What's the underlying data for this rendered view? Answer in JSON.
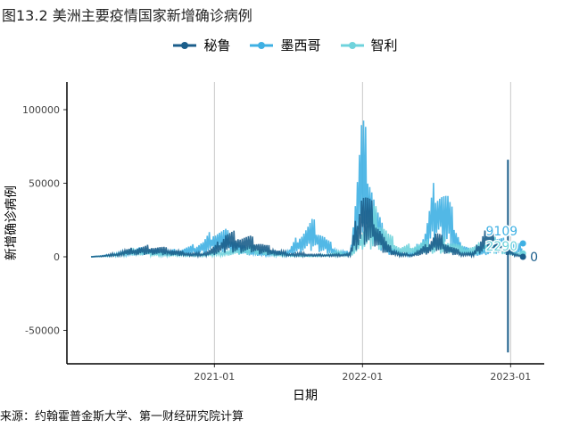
{
  "title": "图13.2 美洲主要疫情国家新增确诊病例",
  "caption": "来源：约翰霍普金斯大学、第一财经研究院计算",
  "chart_data": {
    "type": "line",
    "title": "图13.2 美洲主要疫情国家新增确诊病例",
    "xlabel": "日期",
    "ylabel": "新增确诊病例",
    "x_start": "2020-03",
    "x_end": "2023-02",
    "x_unit": "month",
    "xticks": [
      "2021-01",
      "2022-01",
      "2023-01"
    ],
    "yticks": [
      -50000,
      0,
      50000,
      100000
    ],
    "ylim": [
      -70000,
      115000
    ],
    "grid": "vertical-major",
    "legend_position": "top",
    "series": [
      {
        "name": "秘鲁",
        "color": "#1b5e8b",
        "end_label": "0",
        "values": [
          0,
          1000,
          3000,
          6000,
          8000,
          9000,
          7000,
          5000,
          3000,
          3000,
          8000,
          20000,
          18000,
          15000,
          10000,
          6000,
          3000,
          3000,
          2000,
          2000,
          2000,
          3000,
          58000,
          35000,
          10000,
          3000,
          2000,
          8000,
          20000,
          10000,
          4000,
          3000,
          25000,
          15000,
          5000,
          0
        ],
        "outliers": [
          {
            "month_index": 34,
            "value": 66000
          },
          {
            "month_index": 34,
            "value": -65000
          }
        ]
      },
      {
        "name": "墨西哥",
        "color": "#3fb0e3",
        "end_label": "9109",
        "values": [
          0,
          1000,
          3000,
          5000,
          7000,
          6000,
          5000,
          6000,
          8000,
          12000,
          22000,
          20000,
          10000,
          6000,
          4000,
          4000,
          5000,
          20000,
          28000,
          15000,
          5000,
          4000,
          110000,
          45000,
          10000,
          4000,
          3000,
          18000,
          65000,
          45000,
          10000,
          4000,
          8000,
          15000,
          12000,
          9109
        ]
      },
      {
        "name": "智利",
        "color": "#6fd3dc",
        "end_label": "2290",
        "values": [
          0,
          1000,
          2000,
          6000,
          7000,
          4000,
          3000,
          3000,
          2000,
          2000,
          4000,
          5000,
          8000,
          9000,
          7000,
          3000,
          2000,
          1000,
          1000,
          2000,
          4000,
          3000,
          25000,
          38000,
          20000,
          8000,
          10000,
          12000,
          15000,
          14000,
          8000,
          8000,
          14000,
          15000,
          6000,
          2290
        ]
      }
    ]
  }
}
